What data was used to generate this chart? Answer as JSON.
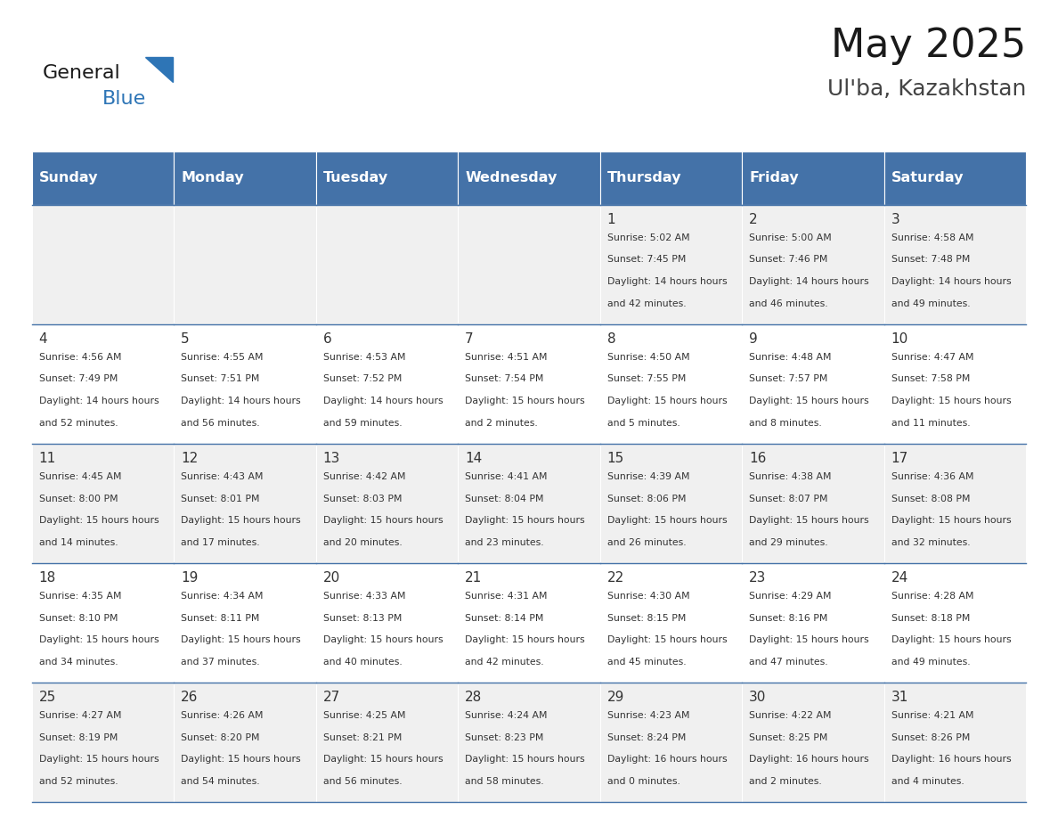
{
  "title": "May 2025",
  "subtitle": "Ul'ba, Kazakhstan",
  "header_color": "#4472a8",
  "header_text_color": "#ffffff",
  "day_names": [
    "Sunday",
    "Monday",
    "Tuesday",
    "Wednesday",
    "Thursday",
    "Friday",
    "Saturday"
  ],
  "background_color": "#ffffff",
  "cell_bg_color": "#f0f0f0",
  "cell_bg_color_alt": "#ffffff",
  "day_num_color": "#333333",
  "text_color": "#333333",
  "logo_general_color": "#1a1a1a",
  "logo_blue_color": "#2e75b6",
  "weeks": [
    [
      {
        "day": null,
        "sunrise": null,
        "sunset": null,
        "daylight": null
      },
      {
        "day": null,
        "sunrise": null,
        "sunset": null,
        "daylight": null
      },
      {
        "day": null,
        "sunrise": null,
        "sunset": null,
        "daylight": null
      },
      {
        "day": null,
        "sunrise": null,
        "sunset": null,
        "daylight": null
      },
      {
        "day": 1,
        "sunrise": "5:02 AM",
        "sunset": "7:45 PM",
        "daylight": "14 hours and 42 minutes."
      },
      {
        "day": 2,
        "sunrise": "5:00 AM",
        "sunset": "7:46 PM",
        "daylight": "14 hours and 46 minutes."
      },
      {
        "day": 3,
        "sunrise": "4:58 AM",
        "sunset": "7:48 PM",
        "daylight": "14 hours and 49 minutes."
      }
    ],
    [
      {
        "day": 4,
        "sunrise": "4:56 AM",
        "sunset": "7:49 PM",
        "daylight": "14 hours and 52 minutes."
      },
      {
        "day": 5,
        "sunrise": "4:55 AM",
        "sunset": "7:51 PM",
        "daylight": "14 hours and 56 minutes."
      },
      {
        "day": 6,
        "sunrise": "4:53 AM",
        "sunset": "7:52 PM",
        "daylight": "14 hours and 59 minutes."
      },
      {
        "day": 7,
        "sunrise": "4:51 AM",
        "sunset": "7:54 PM",
        "daylight": "15 hours and 2 minutes."
      },
      {
        "day": 8,
        "sunrise": "4:50 AM",
        "sunset": "7:55 PM",
        "daylight": "15 hours and 5 minutes."
      },
      {
        "day": 9,
        "sunrise": "4:48 AM",
        "sunset": "7:57 PM",
        "daylight": "15 hours and 8 minutes."
      },
      {
        "day": 10,
        "sunrise": "4:47 AM",
        "sunset": "7:58 PM",
        "daylight": "15 hours and 11 minutes."
      }
    ],
    [
      {
        "day": 11,
        "sunrise": "4:45 AM",
        "sunset": "8:00 PM",
        "daylight": "15 hours and 14 minutes."
      },
      {
        "day": 12,
        "sunrise": "4:43 AM",
        "sunset": "8:01 PM",
        "daylight": "15 hours and 17 minutes."
      },
      {
        "day": 13,
        "sunrise": "4:42 AM",
        "sunset": "8:03 PM",
        "daylight": "15 hours and 20 minutes."
      },
      {
        "day": 14,
        "sunrise": "4:41 AM",
        "sunset": "8:04 PM",
        "daylight": "15 hours and 23 minutes."
      },
      {
        "day": 15,
        "sunrise": "4:39 AM",
        "sunset": "8:06 PM",
        "daylight": "15 hours and 26 minutes."
      },
      {
        "day": 16,
        "sunrise": "4:38 AM",
        "sunset": "8:07 PM",
        "daylight": "15 hours and 29 minutes."
      },
      {
        "day": 17,
        "sunrise": "4:36 AM",
        "sunset": "8:08 PM",
        "daylight": "15 hours and 32 minutes."
      }
    ],
    [
      {
        "day": 18,
        "sunrise": "4:35 AM",
        "sunset": "8:10 PM",
        "daylight": "15 hours and 34 minutes."
      },
      {
        "day": 19,
        "sunrise": "4:34 AM",
        "sunset": "8:11 PM",
        "daylight": "15 hours and 37 minutes."
      },
      {
        "day": 20,
        "sunrise": "4:33 AM",
        "sunset": "8:13 PM",
        "daylight": "15 hours and 40 minutes."
      },
      {
        "day": 21,
        "sunrise": "4:31 AM",
        "sunset": "8:14 PM",
        "daylight": "15 hours and 42 minutes."
      },
      {
        "day": 22,
        "sunrise": "4:30 AM",
        "sunset": "8:15 PM",
        "daylight": "15 hours and 45 minutes."
      },
      {
        "day": 23,
        "sunrise": "4:29 AM",
        "sunset": "8:16 PM",
        "daylight": "15 hours and 47 minutes."
      },
      {
        "day": 24,
        "sunrise": "4:28 AM",
        "sunset": "8:18 PM",
        "daylight": "15 hours and 49 minutes."
      }
    ],
    [
      {
        "day": 25,
        "sunrise": "4:27 AM",
        "sunset": "8:19 PM",
        "daylight": "15 hours and 52 minutes."
      },
      {
        "day": 26,
        "sunrise": "4:26 AM",
        "sunset": "8:20 PM",
        "daylight": "15 hours and 54 minutes."
      },
      {
        "day": 27,
        "sunrise": "4:25 AM",
        "sunset": "8:21 PM",
        "daylight": "15 hours and 56 minutes."
      },
      {
        "day": 28,
        "sunrise": "4:24 AM",
        "sunset": "8:23 PM",
        "daylight": "15 hours and 58 minutes."
      },
      {
        "day": 29,
        "sunrise": "4:23 AM",
        "sunset": "8:24 PM",
        "daylight": "16 hours and 0 minutes."
      },
      {
        "day": 30,
        "sunrise": "4:22 AM",
        "sunset": "8:25 PM",
        "daylight": "16 hours and 2 minutes."
      },
      {
        "day": 31,
        "sunrise": "4:21 AM",
        "sunset": "8:26 PM",
        "daylight": "16 hours and 4 minutes."
      }
    ]
  ]
}
